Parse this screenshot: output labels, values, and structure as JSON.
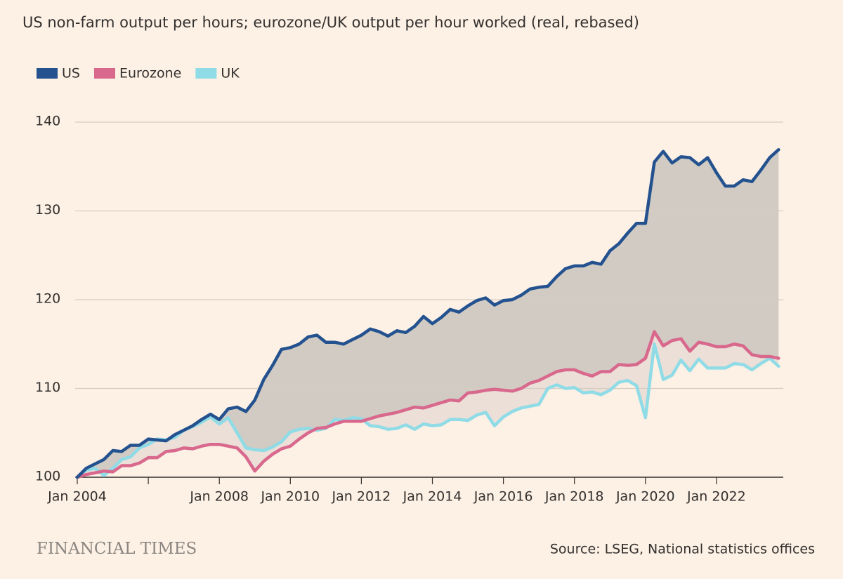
{
  "chart_data": {
    "type": "line",
    "title": "US non-farm output per hours; eurozone/UK output per hour worked (real, rebased)",
    "source": "Source: LSEG, National statistics offices",
    "brand": "FINANCIAL TIMES",
    "x": [
      "2004-01",
      "2004-04",
      "2004-07",
      "2004-10",
      "2005-01",
      "2005-04",
      "2005-07",
      "2005-10",
      "2006-01",
      "2006-04",
      "2006-07",
      "2006-10",
      "2007-01",
      "2007-04",
      "2007-07",
      "2007-10",
      "2008-01",
      "2008-04",
      "2008-07",
      "2008-10",
      "2009-01",
      "2009-04",
      "2009-07",
      "2009-10",
      "2010-01",
      "2010-04",
      "2010-07",
      "2010-10",
      "2011-01",
      "2011-04",
      "2011-07",
      "2011-10",
      "2012-01",
      "2012-04",
      "2012-07",
      "2012-10",
      "2013-01",
      "2013-04",
      "2013-07",
      "2013-10",
      "2014-01",
      "2014-04",
      "2014-07",
      "2014-10",
      "2015-01",
      "2015-04",
      "2015-07",
      "2015-10",
      "2016-01",
      "2016-04",
      "2016-07",
      "2016-10",
      "2017-01",
      "2017-04",
      "2017-07",
      "2017-10",
      "2018-01",
      "2018-04",
      "2018-07",
      "2018-10",
      "2019-01",
      "2019-04",
      "2019-07",
      "2019-10",
      "2020-01",
      "2020-04",
      "2020-07",
      "2020-10",
      "2021-01",
      "2021-04",
      "2021-07",
      "2021-10",
      "2022-01",
      "2022-04",
      "2022-07",
      "2022-10",
      "2023-01",
      "2023-04",
      "2023-07",
      "2023-10"
    ],
    "series": [
      {
        "name": "US",
        "color": "#23528f",
        "values": [
          100,
          101,
          101.5,
          102,
          103,
          102.9,
          103.6,
          103.6,
          104.3,
          104.2,
          104.1,
          104.8,
          105.3,
          105.8,
          106.5,
          107.1,
          106.5,
          107.7,
          107.9,
          107.4,
          108.7,
          111,
          112.6,
          114.4,
          114.6,
          115,
          115.8,
          116,
          115.2,
          115.2,
          115,
          115.5,
          116,
          116.7,
          116.4,
          115.9,
          116.5,
          116.3,
          117,
          118.1,
          117.3,
          118,
          118.9,
          118.6,
          119.3,
          119.9,
          120.2,
          119.4,
          119.9,
          120,
          120.5,
          121.2,
          121.4,
          121.5,
          122.6,
          123.5,
          123.8,
          123.8,
          124.2,
          124,
          125.5,
          126.3,
          127.5,
          128.6,
          128.6,
          135.5,
          136.7,
          135.4,
          136.1,
          136,
          135.2,
          136,
          134.3,
          132.8,
          132.8,
          133.5,
          133.3,
          134.6,
          136,
          136.9
        ]
      },
      {
        "name": "Eurozone",
        "color": "#d9688d",
        "values": [
          100,
          100.3,
          100.5,
          100.7,
          100.6,
          101.3,
          101.3,
          101.6,
          102.2,
          102.2,
          102.9,
          103,
          103.3,
          103.2,
          103.5,
          103.7,
          103.7,
          103.5,
          103.3,
          102.3,
          100.7,
          101.8,
          102.6,
          103.2,
          103.5,
          104.3,
          105,
          105.5,
          105.6,
          106,
          106.3,
          106.3,
          106.3,
          106.6,
          106.9,
          107.1,
          107.3,
          107.6,
          107.9,
          107.8,
          108.1,
          108.4,
          108.7,
          108.6,
          109.5,
          109.6,
          109.8,
          109.9,
          109.8,
          109.7,
          110,
          110.6,
          110.9,
          111.4,
          111.9,
          112.1,
          112.1,
          111.7,
          111.4,
          111.9,
          111.9,
          112.7,
          112.6,
          112.7,
          113.4,
          116.4,
          114.8,
          115.4,
          115.6,
          114.2,
          115.2,
          115,
          114.7,
          114.7,
          115,
          114.8,
          113.8,
          113.6,
          113.6,
          113.4
        ]
      },
      {
        "name": "UK",
        "color": "#8fdbe6",
        "values": [
          100,
          100.8,
          101,
          100.2,
          101,
          102,
          102.3,
          103.3,
          103.7,
          104.3,
          104.2,
          104.5,
          105.3,
          105.7,
          106.2,
          106.8,
          106,
          106.7,
          105,
          103.3,
          103.1,
          103,
          103.4,
          104,
          105.1,
          105.4,
          105.5,
          105.3,
          105.5,
          106.5,
          106.4,
          106.7,
          106.6,
          105.8,
          105.7,
          105.4,
          105.5,
          105.9,
          105.4,
          106,
          105.8,
          105.9,
          106.5,
          106.5,
          106.4,
          107,
          107.3,
          105.8,
          106.8,
          107.4,
          107.8,
          108,
          108.2,
          110,
          110.4,
          110,
          110.1,
          109.5,
          109.6,
          109.3,
          109.8,
          110.7,
          110.9,
          110.3,
          106.7,
          115,
          111,
          111.5,
          113.2,
          112,
          113.3,
          112.3,
          112.3,
          112.3,
          112.8,
          112.7,
          112.1,
          112.8,
          113.4,
          112.5
        ]
      }
    ],
    "xticks": [
      {
        "value": "2004-01",
        "label": "Jan 2004"
      },
      {
        "value": "2006-01",
        "label": null
      },
      {
        "value": "2008-01",
        "label": "Jan 2008"
      },
      {
        "value": "2010-01",
        "label": "Jan 2010"
      },
      {
        "value": "2012-01",
        "label": "Jan 2012"
      },
      {
        "value": "2014-01",
        "label": "Jan 2014"
      },
      {
        "value": "2016-01",
        "label": "Jan 2016"
      },
      {
        "value": "2018-01",
        "label": "Jan 2018"
      },
      {
        "value": "2020-01",
        "label": "Jan 2020"
      },
      {
        "value": "2022-01",
        "label": "Jan 2022"
      }
    ],
    "ylim": [
      100,
      140
    ],
    "yticks": [
      100,
      110,
      120,
      130,
      140
    ],
    "grid": true,
    "gap_color": "#d1cbc4",
    "band_color": "#ebdfd8"
  }
}
